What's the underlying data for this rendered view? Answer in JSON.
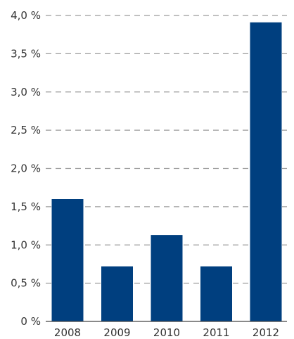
{
  "chart_data": {
    "type": "bar",
    "categories": [
      "2008",
      "2009",
      "2010",
      "2011",
      "2012"
    ],
    "values": [
      1.6,
      0.72,
      1.13,
      0.72,
      3.91
    ],
    "ylim": [
      0,
      4.0
    ],
    "yticks": [
      0,
      0.5,
      1.0,
      1.5,
      2.0,
      2.5,
      3.0,
      3.5,
      4.0
    ],
    "ytick_labels": [
      "0 %",
      "0,5 %",
      "1,0 %",
      "1,5 %",
      "2,0 %",
      "2,5 %",
      "3,0 %",
      "3,5 %",
      "4,0 %"
    ],
    "title": "",
    "xlabel": "",
    "ylabel": "",
    "grid": "horizontal dashed",
    "bar_color": "#003f7f",
    "grid_color": "#9a9a9a"
  }
}
